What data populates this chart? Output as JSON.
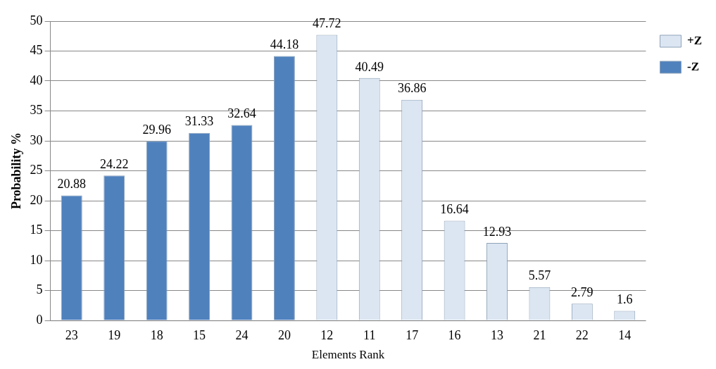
{
  "chart_data": {
    "type": "bar",
    "xlabel": "Elements Rank",
    "ylabel": "Probability %",
    "categories": [
      "23",
      "19",
      "18",
      "15",
      "24",
      "20",
      "12",
      "11",
      "17",
      "16",
      "13",
      "21",
      "22",
      "14"
    ],
    "series": [
      {
        "name": "+Z",
        "color": "#dce6f2",
        "values": [
          null,
          null,
          null,
          null,
          null,
          null,
          47.72,
          40.49,
          36.86,
          16.64,
          12.93,
          5.57,
          2.79,
          1.6
        ]
      },
      {
        "name": "-Z",
        "color": "#4f81bd",
        "values": [
          20.88,
          24.22,
          29.96,
          31.33,
          32.64,
          44.18,
          null,
          null,
          null,
          null,
          null,
          null,
          null,
          null
        ]
      }
    ],
    "ylim": [
      0,
      50
    ],
    "yticks": [
      0,
      5,
      10,
      15,
      20,
      25,
      30,
      35,
      40,
      45,
      50
    ],
    "grid": "y",
    "legend": "top right",
    "data_labels": true
  }
}
